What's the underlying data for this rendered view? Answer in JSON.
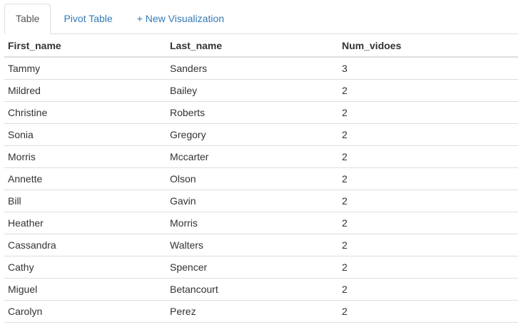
{
  "tabs": [
    {
      "label": "Table",
      "active": true
    },
    {
      "label": "Pivot Table",
      "active": false
    },
    {
      "label": "+ New Visualization",
      "active": false
    }
  ],
  "table": {
    "columns": [
      "First_name",
      "Last_name",
      "Num_vidoes"
    ],
    "rows": [
      [
        "Tammy",
        "Sanders",
        "3"
      ],
      [
        "Mildred",
        "Bailey",
        "2"
      ],
      [
        "Christine",
        "Roberts",
        "2"
      ],
      [
        "Sonia",
        "Gregory",
        "2"
      ],
      [
        "Morris",
        "Mccarter",
        "2"
      ],
      [
        "Annette",
        "Olson",
        "2"
      ],
      [
        "Bill",
        "Gavin",
        "2"
      ],
      [
        "Heather",
        "Morris",
        "2"
      ],
      [
        "Cassandra",
        "Walters",
        "2"
      ],
      [
        "Cathy",
        "Spencer",
        "2"
      ],
      [
        "Miguel",
        "Betancourt",
        "2"
      ],
      [
        "Carolyn",
        "Perez",
        "2"
      ]
    ]
  },
  "colors": {
    "link": "#337ab7",
    "active_tab_text": "#555555",
    "border": "#dddddd",
    "text": "#333333"
  }
}
